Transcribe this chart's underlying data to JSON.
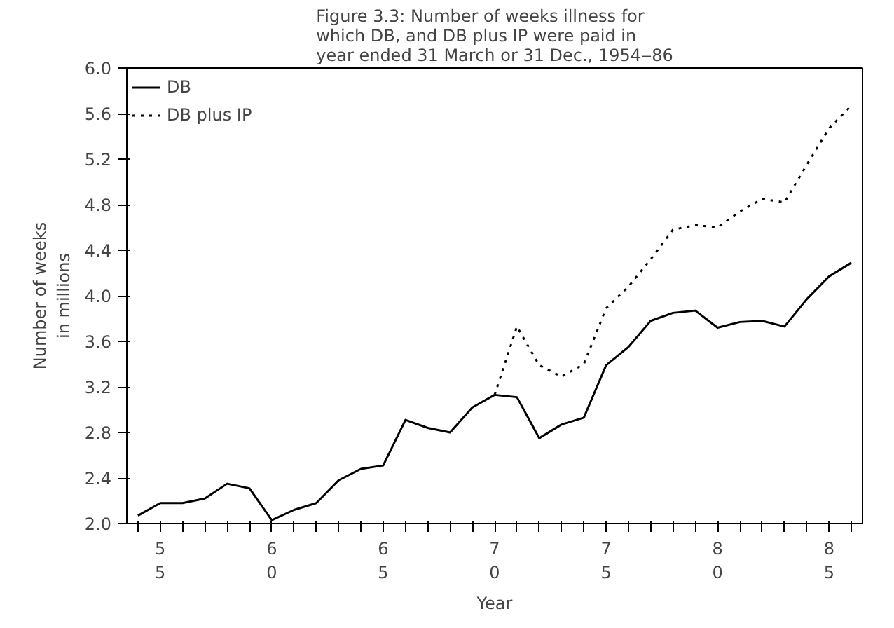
{
  "chart_data": {
    "type": "line",
    "title": "Figure 3.3: Number of weeks illness for\nwhich DB, and DB plus IP were paid in\nyear ended 31 March or 31 Dec., 1954‒86",
    "xlabel": "Year",
    "ylabel": "Number of weeks\nin millions",
    "categories": [
      null,
      "5\n5",
      null,
      null,
      null,
      null,
      "6\n0",
      null,
      null,
      null,
      null,
      "6\n5",
      null,
      null,
      null,
      null,
      "7\n0",
      null,
      null,
      null,
      null,
      "7\n5",
      null,
      null,
      null,
      null,
      "8\n0",
      null,
      null,
      null,
      null,
      "8\n5",
      null
    ],
    "series": [
      {
        "name": "DB",
        "color": "#000000",
        "line_style": "solid",
        "values": [
          2.07,
          2.18,
          2.18,
          2.22,
          2.35,
          2.31,
          2.03,
          2.12,
          2.18,
          2.38,
          2.48,
          2.51,
          2.91,
          2.84,
          2.8,
          3.02,
          3.13,
          3.11,
          2.75,
          2.87,
          2.93,
          3.39,
          3.55,
          3.78,
          3.85,
          3.87,
          3.72,
          3.77,
          3.78,
          3.73,
          3.97,
          4.17,
          4.29
        ]
      },
      {
        "name": "DB plus IP",
        "color": "#000000",
        "line_style": "dotted",
        "values": [
          null,
          null,
          null,
          null,
          null,
          null,
          null,
          null,
          null,
          null,
          null,
          null,
          null,
          null,
          null,
          null,
          3.13,
          3.73,
          3.39,
          3.29,
          3.4,
          3.89,
          4.08,
          4.32,
          4.58,
          4.62,
          4.6,
          4.74,
          4.85,
          4.82,
          5.15,
          5.47,
          5.67
        ]
      }
    ],
    "ylim": [
      2.0,
      6.0
    ],
    "yticks": [
      {
        "value": 2.0,
        "label": "2.0"
      },
      {
        "value": 2.4,
        "label": "2.4"
      },
      {
        "value": 2.8,
        "label": "2.8"
      },
      {
        "value": 3.2,
        "label": "3.2"
      },
      {
        "value": 3.6,
        "label": "3.6"
      },
      {
        "value": 4.0,
        "label": "4.0"
      },
      {
        "value": 4.4,
        "label": "4.4"
      },
      {
        "value": 4.8,
        "label": "4.8"
      },
      {
        "value": 5.2,
        "label": "5.2"
      },
      {
        "value": 5.6,
        "label": "5.6"
      },
      {
        "value": 6.0,
        "label": "6.0"
      }
    ],
    "legend": "top left",
    "grid": false,
    "marker": "none"
  }
}
